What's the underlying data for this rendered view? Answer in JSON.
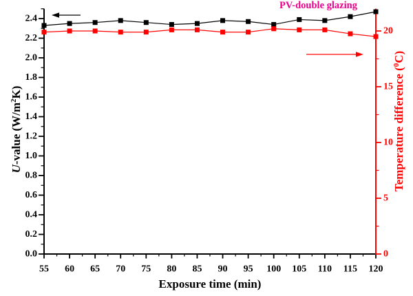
{
  "chart_data": {
    "type": "line",
    "title": "PV-double glazing",
    "title_color": "#EC008C",
    "xlabel": "Exposure time (min)",
    "ylabel_left": "U-value (W/m²K)",
    "ylabel_left_parts": [
      {
        "text": "U",
        "style": "italic"
      },
      {
        "text": "-value (W/m",
        "style": "normal"
      },
      {
        "text": "2",
        "style": "sup"
      },
      {
        "text": "K)",
        "style": "normal"
      }
    ],
    "ylabel_right": "Temperature difference (⁰C)",
    "ylabel_right_parts": [
      {
        "text": "Temperature difference (",
        "style": "normal"
      },
      {
        "text": "0",
        "style": "sup"
      },
      {
        "text": "C)",
        "style": "normal"
      }
    ],
    "x": [
      55,
      60,
      65,
      70,
      75,
      80,
      85,
      90,
      95,
      100,
      105,
      110,
      115,
      120
    ],
    "series": [
      {
        "name": "U-value",
        "axis": "left",
        "color": "#000000",
        "marker": "square",
        "values": [
          2.33,
          2.35,
          2.36,
          2.38,
          2.36,
          2.34,
          2.35,
          2.38,
          2.37,
          2.34,
          2.39,
          2.38,
          2.42,
          2.47
        ]
      },
      {
        "name": "Temperature difference",
        "axis": "right",
        "color": "#FF0000",
        "marker": "square",
        "values": [
          19.9,
          20.0,
          20.0,
          19.9,
          19.9,
          20.1,
          20.1,
          19.9,
          19.9,
          20.2,
          20.1,
          20.1,
          19.75,
          19.5
        ]
      }
    ],
    "x_axis": {
      "min": 55,
      "max": 120,
      "major_step": 5,
      "minor_step": 2.5,
      "color": "#000000",
      "tick_labels": [
        "55",
        "60",
        "65",
        "70",
        "75",
        "80",
        "85",
        "90",
        "95",
        "100",
        "105",
        "110",
        "115",
        "120"
      ]
    },
    "left_axis": {
      "min": 0,
      "max": 2.5,
      "major_step": 0.2,
      "minor_step": 0.1,
      "color": "#000000",
      "tick_labels": [
        "0.0",
        "0.2",
        "0.4",
        "0.6",
        "0.8",
        "1.0",
        "1.2",
        "1.4",
        "1.6",
        "1.8",
        "2.0",
        "2.2",
        "2.4"
      ]
    },
    "right_axis": {
      "min": 0,
      "max": 22,
      "major_step": 5,
      "minor_step": 2.5,
      "color": "#FF0000",
      "tick_labels": [
        "0",
        "5",
        "10",
        "15",
        "20"
      ]
    },
    "grid": false,
    "legend": "none",
    "annotations": [
      {
        "type": "arrow",
        "direction": "left",
        "color": "#000000",
        "meaning": "U-value series read on left axis"
      },
      {
        "type": "arrow",
        "direction": "right",
        "color": "#FF0000",
        "meaning": "Temperature series read on right axis"
      }
    ]
  }
}
